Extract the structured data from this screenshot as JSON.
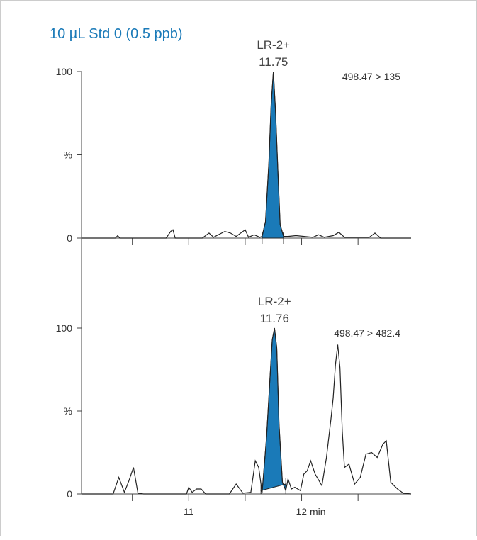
{
  "chart_data": {
    "title": "10 µL Std 0 (0.5 ppb)",
    "title_color": "#1a7ab8",
    "peak_fill_color": "#1a7ab8",
    "trace_color": "#222222",
    "x_unit": "min",
    "x_range": [
      10.05,
      12.97
    ],
    "x_ticks": [
      10.5,
      11,
      11.5,
      12,
      12.5
    ],
    "x_tick_labels": [
      {
        "value": 11,
        "label": "11"
      },
      {
        "value": 12,
        "label": "12 min"
      }
    ],
    "panels": [
      {
        "type": "line",
        "transition": "498.47 > 135",
        "ylabel": "%",
        "ylim": [
          0,
          100
        ],
        "y_ticks": [
          {
            "value": 0,
            "label": "0"
          },
          {
            "value": 50,
            "label": "%"
          },
          {
            "value": 100,
            "label": "100"
          }
        ],
        "peak": {
          "name": "LR-2+",
          "rt": "11.75",
          "apex_x": 11.75,
          "integration_start": 11.65,
          "integration_end": 11.84
        },
        "x": [
          10.05,
          10.35,
          10.37,
          10.39,
          10.8,
          10.84,
          10.86,
          10.88,
          11.12,
          11.18,
          11.22,
          11.32,
          11.37,
          11.42,
          11.47,
          11.5,
          11.53,
          11.58,
          11.63,
          11.65,
          11.68,
          11.71,
          11.73,
          11.75,
          11.77,
          11.79,
          11.81,
          11.84,
          11.88,
          11.95,
          12.1,
          12.15,
          12.2,
          12.28,
          12.33,
          12.38,
          12.6,
          12.65,
          12.7,
          12.97
        ],
        "y": [
          0,
          0,
          1.5,
          0,
          0,
          4,
          5,
          0,
          0,
          3,
          0.5,
          4,
          3,
          1,
          3.5,
          5,
          0.5,
          2,
          0.5,
          1,
          10,
          45,
          80,
          100,
          75,
          40,
          8,
          1,
          1,
          1.5,
          0.5,
          2,
          0.5,
          1.5,
          3.5,
          0.5,
          0.5,
          3,
          0,
          0
        ]
      },
      {
        "type": "line",
        "transition": "498.47 > 482.4",
        "ylabel": "%",
        "ylim": [
          0,
          100
        ],
        "y_ticks": [
          {
            "value": 0,
            "label": "0"
          },
          {
            "value": 50,
            "label": "%"
          },
          {
            "value": 100,
            "label": "100"
          }
        ],
        "peak": {
          "name": "LR-2+",
          "rt": "11.76",
          "apex_x": 11.76,
          "integration_start": 11.64,
          "integration_end": 11.86,
          "baseline_start_y": 2,
          "baseline_end_y": 6
        },
        "x": [
          10.05,
          10.33,
          10.38,
          10.43,
          10.47,
          10.51,
          10.55,
          10.6,
          10.98,
          11.0,
          11.03,
          11.07,
          11.11,
          11.15,
          11.36,
          11.42,
          11.48,
          11.55,
          11.59,
          11.62,
          11.65,
          11.69,
          11.72,
          11.74,
          11.76,
          11.78,
          11.8,
          11.83,
          11.86,
          11.88,
          11.91,
          11.94,
          11.99,
          12.02,
          12.05,
          12.08,
          12.12,
          12.18,
          12.22,
          12.26,
          12.28,
          12.3,
          12.32,
          12.34,
          12.36,
          12.38,
          12.42,
          12.47,
          12.52,
          12.57,
          12.62,
          12.67,
          12.72,
          12.75,
          12.79,
          12.85,
          12.9,
          12.97
        ],
        "y": [
          0,
          0,
          10,
          1,
          8,
          16,
          0.5,
          0,
          0,
          4,
          1,
          3,
          3,
          0,
          0,
          6,
          0.5,
          1,
          20,
          16,
          1,
          35,
          70,
          93,
          100,
          88,
          42,
          7,
          2,
          9,
          3,
          4,
          2,
          12,
          14,
          20,
          12,
          5,
          22,
          45,
          58,
          78,
          90,
          76,
          38,
          16,
          18,
          6,
          10,
          24,
          25,
          22,
          30,
          32,
          7,
          3,
          0.5,
          0
        ]
      }
    ]
  }
}
